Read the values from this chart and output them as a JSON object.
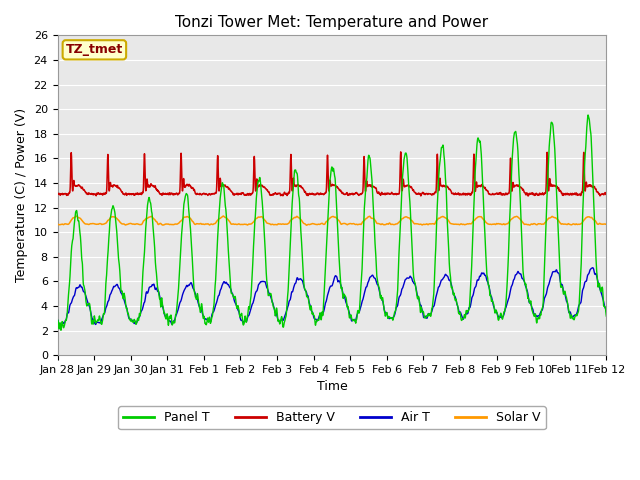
{
  "title": "Tonzi Tower Met: Temperature and Power",
  "xlabel": "Time",
  "ylabel": "Temperature (C) / Power (V)",
  "legend_label": "TZ_tmet",
  "ylim": [
    0,
    26
  ],
  "yticks": [
    0,
    2,
    4,
    6,
    8,
    10,
    12,
    14,
    16,
    18,
    20,
    22,
    24,
    26
  ],
  "series_colors": {
    "Panel T": "#00cc00",
    "Battery V": "#cc0000",
    "Air T": "#0000cc",
    "Solar V": "#ff9900"
  },
  "fig_bg": "#ffffff",
  "plot_bg": "#e8e8e8",
  "grid_color": "#ffffff",
  "n_days": 15,
  "xtick_labels": [
    "Jan 28",
    "Jan 29",
    "Jan 30",
    "Jan 31",
    "Feb 1",
    "Feb 2",
    "Feb 3",
    "Feb 4",
    "Feb 5",
    "Feb 6",
    "Feb 7",
    "Feb 8",
    "Feb 9",
    "Feb 10",
    "Feb 11",
    "Feb 12"
  ],
  "xtick_positions": [
    0,
    1,
    2,
    3,
    4,
    5,
    6,
    7,
    8,
    9,
    10,
    11,
    12,
    13,
    14,
    15
  ],
  "title_fontsize": 11,
  "axis_fontsize": 9,
  "tick_fontsize": 8,
  "legend_box_color": "#ffffcc",
  "legend_box_edge": "#ccaa00",
  "legend_text_color": "#880000"
}
